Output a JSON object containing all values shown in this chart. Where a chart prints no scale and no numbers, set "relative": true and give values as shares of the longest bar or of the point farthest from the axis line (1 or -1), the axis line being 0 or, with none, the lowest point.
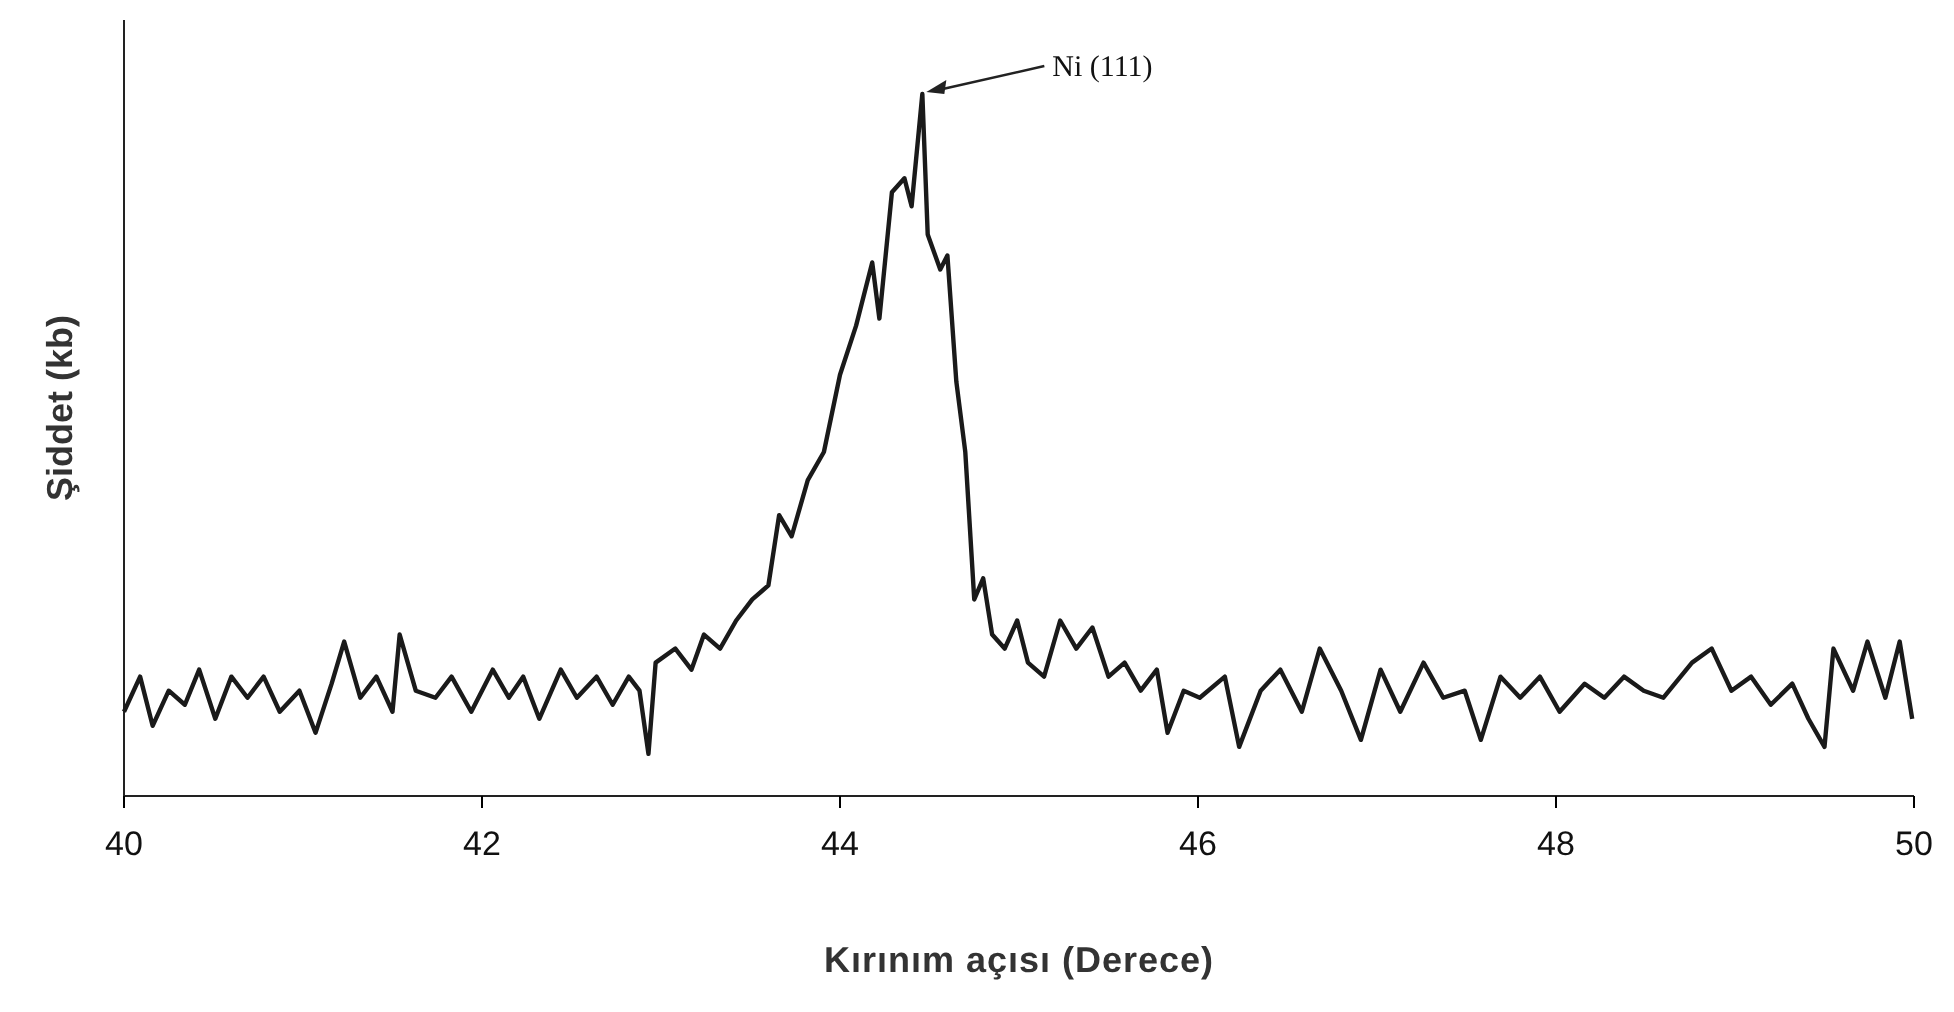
{
  "chart_data": {
    "type": "line",
    "xlabel": "Kırınım açısı (Derece)",
    "ylabel": "Şiddet (kb)",
    "relative": true,
    "xlim": [
      40,
      50
    ],
    "xticks": [
      40,
      42,
      44,
      46,
      48,
      50
    ],
    "marker": "none",
    "line_style": "solid",
    "annotations": [
      {
        "text": "Ni (111)",
        "x": 44.46,
        "y": 1
      }
    ],
    "series": [
      {
        "color": "#1a1a1a",
        "x": [
          40.0,
          40.09,
          40.16,
          40.25,
          40.34,
          40.42,
          40.51,
          40.6,
          40.69,
          40.78,
          40.87,
          40.98,
          41.07,
          41.16,
          41.23,
          41.32,
          41.41,
          41.5,
          41.54,
          41.63,
          41.74,
          41.83,
          41.94,
          42.06,
          42.15,
          42.23,
          42.32,
          42.44,
          42.53,
          42.64,
          42.73,
          42.82,
          42.88,
          42.93,
          42.97,
          43.08,
          43.17,
          43.24,
          43.33,
          43.42,
          43.51,
          43.6,
          43.66,
          43.73,
          43.82,
          43.91,
          44.0,
          44.09,
          44.18,
          44.22,
          44.29,
          44.36,
          44.4,
          44.46,
          44.49,
          44.56,
          44.6,
          44.65,
          44.7,
          44.75,
          44.8,
          44.85,
          44.92,
          44.99,
          45.05,
          45.14,
          45.23,
          45.32,
          45.41,
          45.5,
          45.59,
          45.68,
          45.77,
          45.83,
          45.92,
          46.01,
          46.15,
          46.23,
          46.35,
          46.46,
          46.58,
          46.68,
          46.8,
          46.91,
          47.02,
          47.13,
          47.26,
          47.37,
          47.49,
          47.58,
          47.69,
          47.8,
          47.91,
          48.02,
          48.16,
          48.27,
          48.38,
          48.49,
          48.6,
          48.76,
          48.87,
          48.98,
          49.09,
          49.2,
          49.32,
          49.41,
          49.5,
          49.55,
          49.66,
          49.74,
          49.84,
          49.92,
          49.99
        ],
        "values": [
          0.12,
          0.17,
          0.1,
          0.15,
          0.13,
          0.18,
          0.11,
          0.17,
          0.14,
          0.17,
          0.12,
          0.15,
          0.09,
          0.16,
          0.22,
          0.14,
          0.17,
          0.12,
          0.23,
          0.15,
          0.14,
          0.17,
          0.12,
          0.18,
          0.14,
          0.17,
          0.11,
          0.18,
          0.14,
          0.17,
          0.13,
          0.17,
          0.15,
          0.06,
          0.19,
          0.21,
          0.18,
          0.23,
          0.21,
          0.25,
          0.28,
          0.3,
          0.4,
          0.37,
          0.45,
          0.49,
          0.6,
          0.67,
          0.76,
          0.68,
          0.86,
          0.88,
          0.84,
          1.0,
          0.8,
          0.75,
          0.77,
          0.59,
          0.49,
          0.28,
          0.31,
          0.23,
          0.21,
          0.25,
          0.19,
          0.17,
          0.25,
          0.21,
          0.24,
          0.17,
          0.19,
          0.15,
          0.18,
          0.09,
          0.15,
          0.14,
          0.17,
          0.07,
          0.15,
          0.18,
          0.12,
          0.21,
          0.15,
          0.08,
          0.18,
          0.12,
          0.19,
          0.14,
          0.15,
          0.08,
          0.17,
          0.14,
          0.17,
          0.12,
          0.16,
          0.14,
          0.17,
          0.15,
          0.14,
          0.19,
          0.21,
          0.15,
          0.17,
          0.13,
          0.16,
          0.11,
          0.07,
          0.21,
          0.15,
          0.22,
          0.14,
          0.22,
          0.11
        ]
      }
    ]
  }
}
